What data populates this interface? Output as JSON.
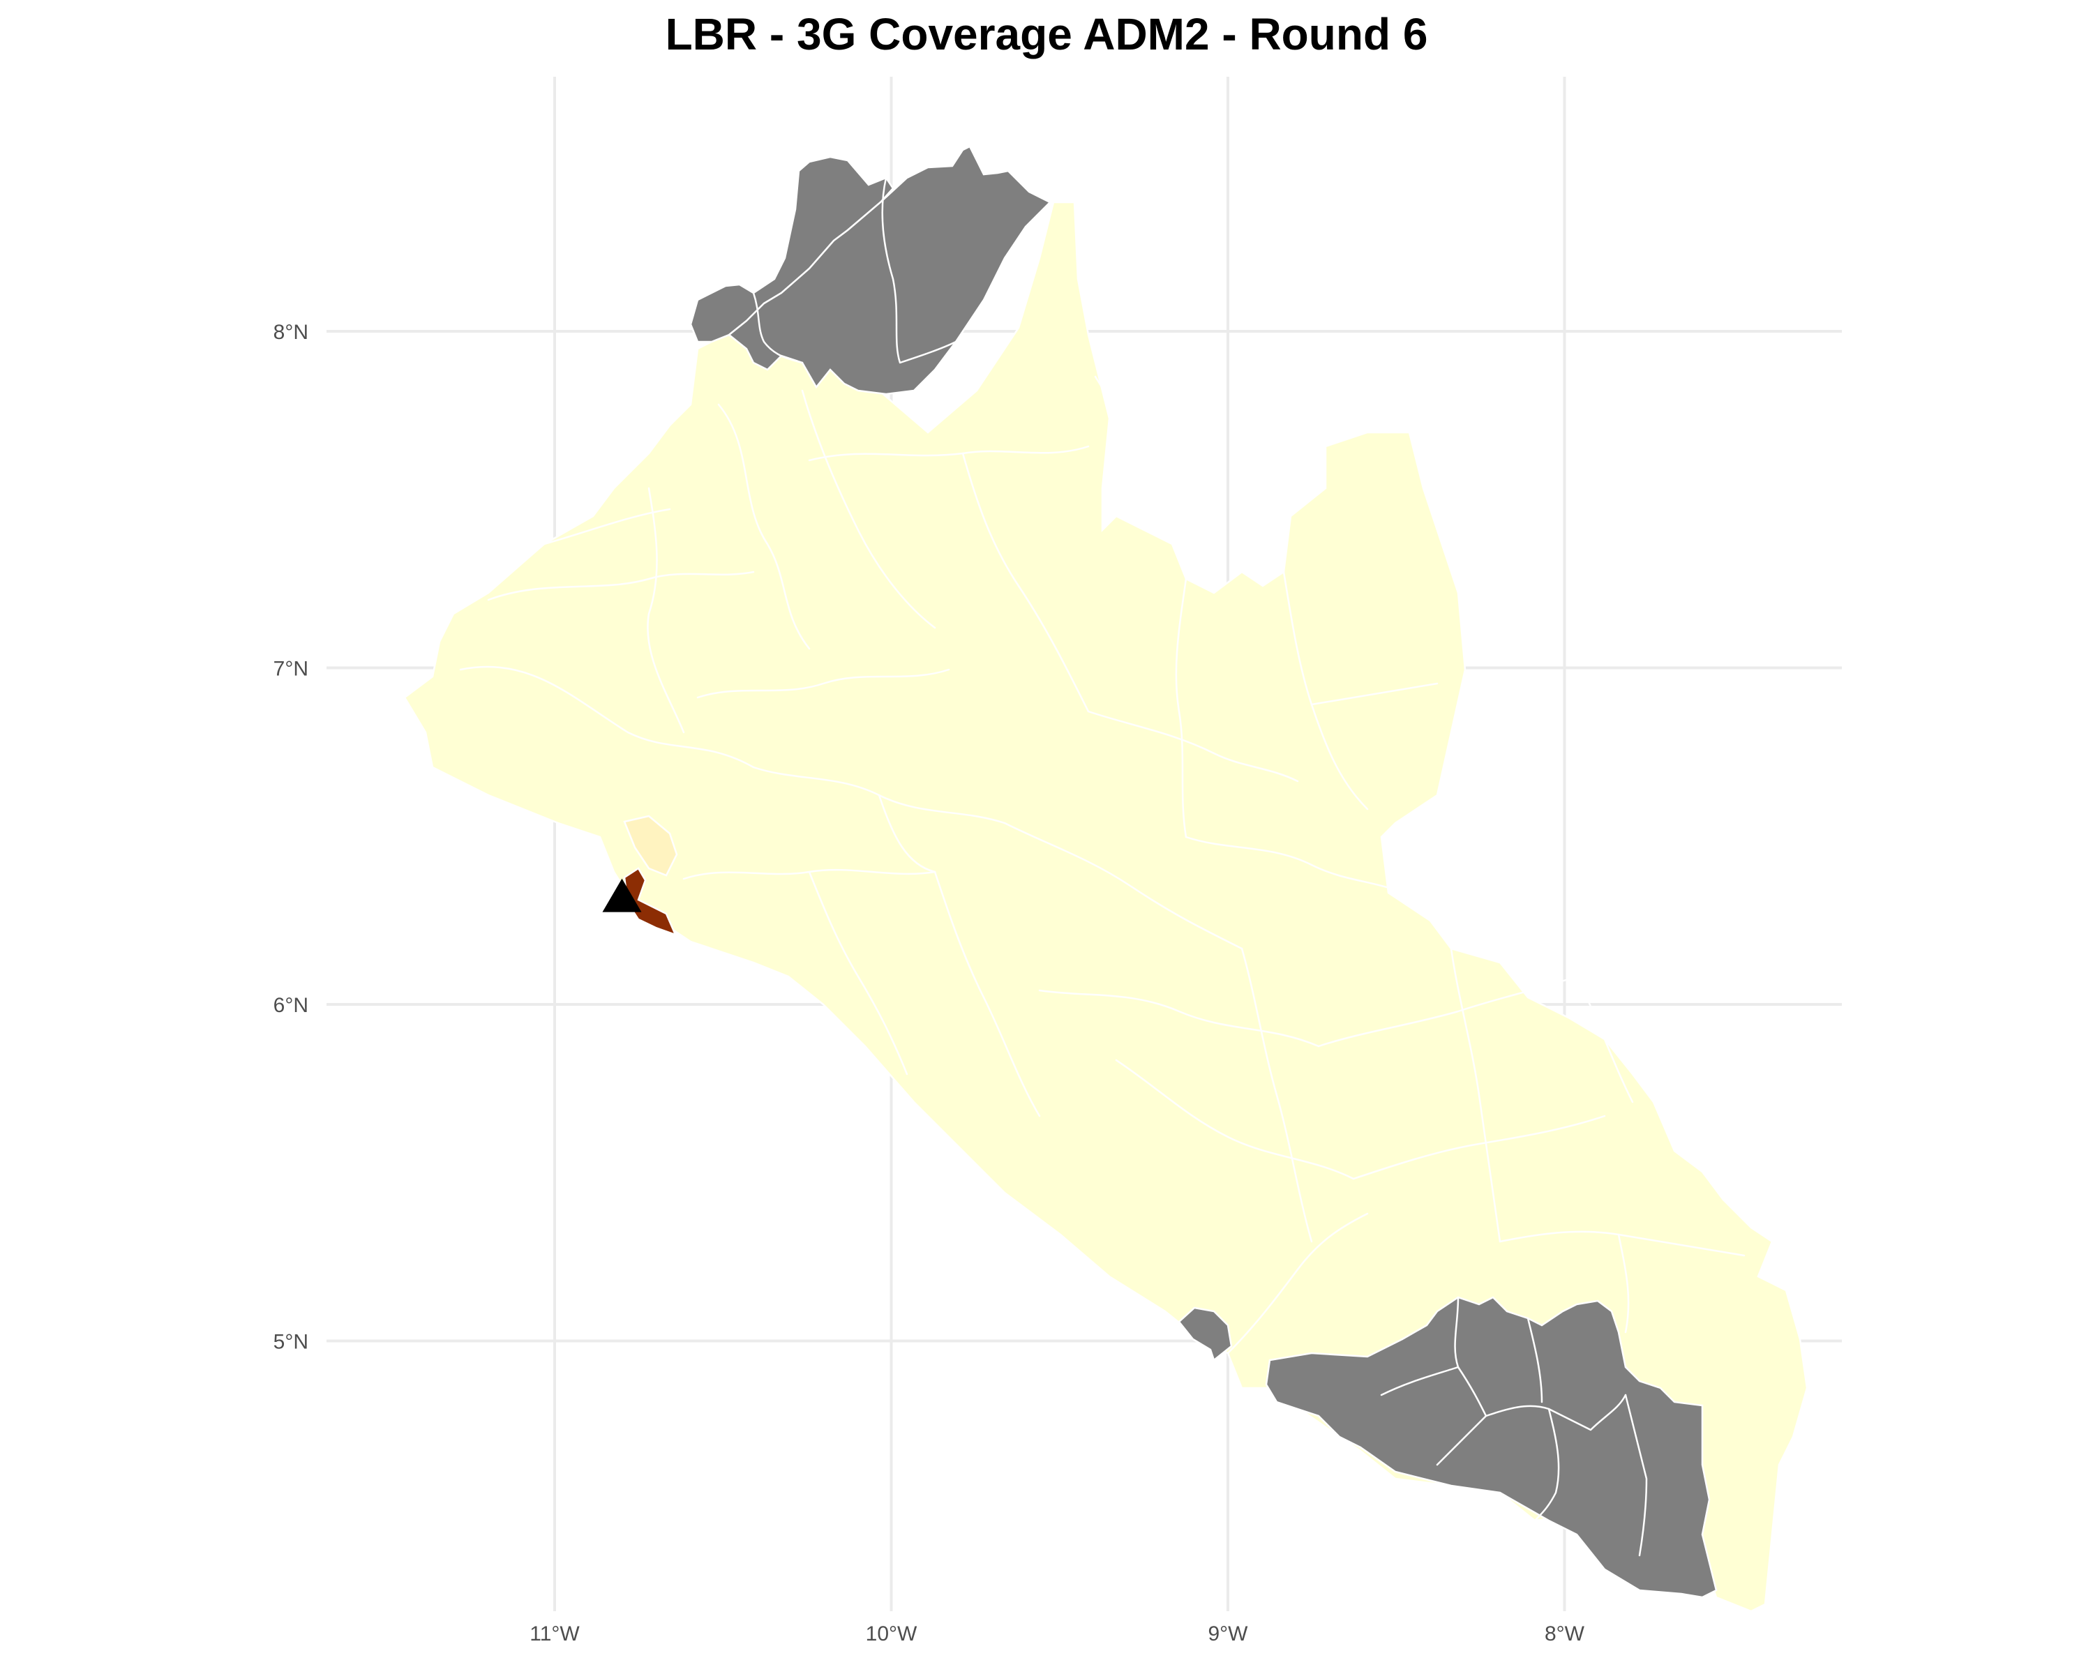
{
  "map": {
    "title": "LBR - 3G Coverage ADM2 - Round 6",
    "graticule": {
      "longitudes": [
        -11,
        -10,
        -9,
        -8
      ],
      "latitudes": [
        8,
        7,
        6,
        5
      ],
      "lon_labels": [
        "11°W",
        "10°W",
        "9°W",
        "8°W"
      ],
      "lat_labels": [
        "8°N",
        "7°N",
        "6°N",
        "5°N"
      ]
    },
    "colors": {
      "grid": "#ebebeb",
      "low_coverage": "#ffffd4",
      "light_coverage": "#fff3c0",
      "high_coverage": "#8c2d04",
      "no_data": "#7f7f7f",
      "borders": "#ffffff",
      "marker": "#000000"
    },
    "regions": [
      {
        "id": "north-lofa-west",
        "fill": "no_data"
      },
      {
        "id": "north-lofa-east",
        "fill": "no_data"
      },
      {
        "id": "southeast-maryland-group",
        "fill": "no_data"
      },
      {
        "id": "sinoe-coastal",
        "fill": "no_data"
      },
      {
        "id": "greenville-point",
        "fill": "no_data"
      },
      {
        "id": "monrovia",
        "fill": "high_coverage"
      },
      {
        "id": "montserrado-north",
        "fill": "light_coverage"
      },
      {
        "id": "liberia-mainland",
        "fill": "low_coverage"
      }
    ],
    "marker": {
      "shape": "triangle",
      "lon": -10.8,
      "lat": 6.32
    }
  }
}
